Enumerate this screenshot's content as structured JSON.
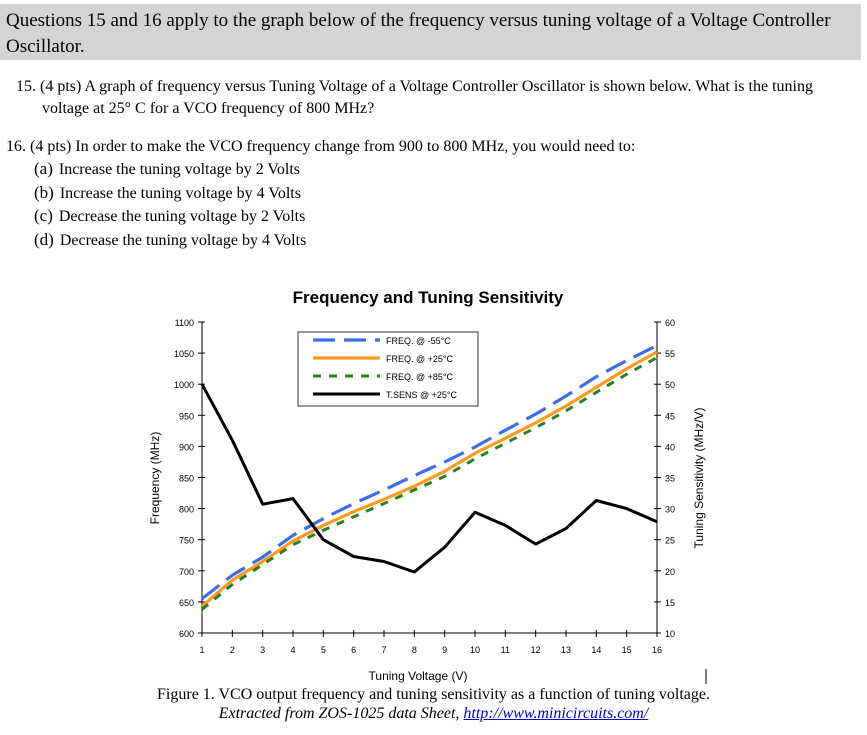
{
  "header": {
    "text": "Questions 15 and 16 apply to the graph below of the frequency versus tuning voltage of a Voltage Controller Oscillator."
  },
  "q15": {
    "line1": "15.  (4 pts) A graph of frequency versus Tuning Voltage of a Voltage Controller Oscillator is shown below.  What is the tuning",
    "line2": "voltage at 25° C for a VCO frequency of 800 MHz?"
  },
  "q16": {
    "stem": "16.  (4 pts) In order to make the VCO frequency change from 900 to 800 MHz, you would need to:",
    "options": [
      {
        "letter": "(a)",
        "text": "Increase the tuning voltage by 2 Volts"
      },
      {
        "letter": "(b)",
        "text": "Increase the tuning voltage by 4 Volts"
      },
      {
        "letter": "(c)",
        "text": "Decrease the tuning voltage by 2 Volts"
      },
      {
        "letter": "(d)",
        "text": "Decrease the tuning voltage by 4 Volts"
      }
    ]
  },
  "figure": {
    "caption": "Figure 1.  VCO output frequency and tuning sensitivity as a function of tuning voltage.",
    "source_prefix": "Extracted from ZOS-1025 data Sheet,",
    "source_link": "http://www.minicircuits.com/"
  },
  "chart_data": {
    "type": "line",
    "title": "Frequency and Tuning Sensitivity",
    "xlabel": "Tuning Voltage (V)",
    "ylabel": "Frequency (MHz)",
    "y2label": "Tuning Sensitivity (MHz/V)",
    "xlim": [
      1,
      16
    ],
    "ylim": [
      600,
      1100
    ],
    "y2lim": [
      10,
      60
    ],
    "xticks": [
      1,
      2,
      3,
      4,
      5,
      6,
      7,
      8,
      9,
      10,
      11,
      12,
      13,
      14,
      15,
      16
    ],
    "yticks": [
      600,
      650,
      700,
      750,
      800,
      850,
      900,
      950,
      1000,
      1050,
      1100
    ],
    "y2ticks": [
      10,
      15,
      20,
      25,
      30,
      35,
      40,
      45,
      50,
      55,
      60
    ],
    "grid": false,
    "legend_position": "top-left",
    "series": [
      {
        "name": "FREQ. @ -55°C",
        "axis": "left",
        "color": "#3b6ee8",
        "style": "long-dash",
        "x": [
          1,
          2,
          3,
          4,
          5,
          6,
          7,
          8,
          9,
          10,
          11,
          12,
          13,
          14,
          15,
          16
        ],
        "y": [
          655,
          693,
          722,
          757,
          784,
          808,
          830,
          853,
          875,
          899,
          926,
          952,
          981,
          1012,
          1038,
          1062
        ]
      },
      {
        "name": "FREQ. @ +25°C",
        "axis": "left",
        "color": "#ff9a1e",
        "style": "solid",
        "x": [
          1,
          2,
          3,
          4,
          5,
          6,
          7,
          8,
          9,
          10,
          11,
          12,
          13,
          14,
          15,
          16
        ],
        "y": [
          643,
          685,
          715,
          748,
          773,
          795,
          815,
          836,
          860,
          889,
          913,
          938,
          965,
          995,
          1025,
          1052
        ]
      },
      {
        "name": "FREQ. @ +85°C",
        "axis": "left",
        "color": "#2e7d1e",
        "style": "short-dash",
        "x": [
          1,
          2,
          3,
          4,
          5,
          6,
          7,
          8,
          9,
          10,
          11,
          12,
          13,
          14,
          15,
          16
        ],
        "y": [
          638,
          678,
          710,
          742,
          765,
          787,
          808,
          830,
          852,
          880,
          905,
          930,
          957,
          987,
          1016,
          1043
        ]
      },
      {
        "name": "T.SENS @ +25°C",
        "axis": "right",
        "color": "#000000",
        "style": "solid",
        "x": [
          1,
          2,
          3,
          4,
          5,
          6,
          7,
          8,
          9,
          10,
          11,
          12,
          13,
          14,
          15,
          16
        ],
        "y": [
          50,
          41,
          30.7,
          31.6,
          25.0,
          22.3,
          21.5,
          19.8,
          23.8,
          29.4,
          27.3,
          24.3,
          26.8,
          31.3,
          30.0,
          27.9
        ]
      }
    ]
  }
}
